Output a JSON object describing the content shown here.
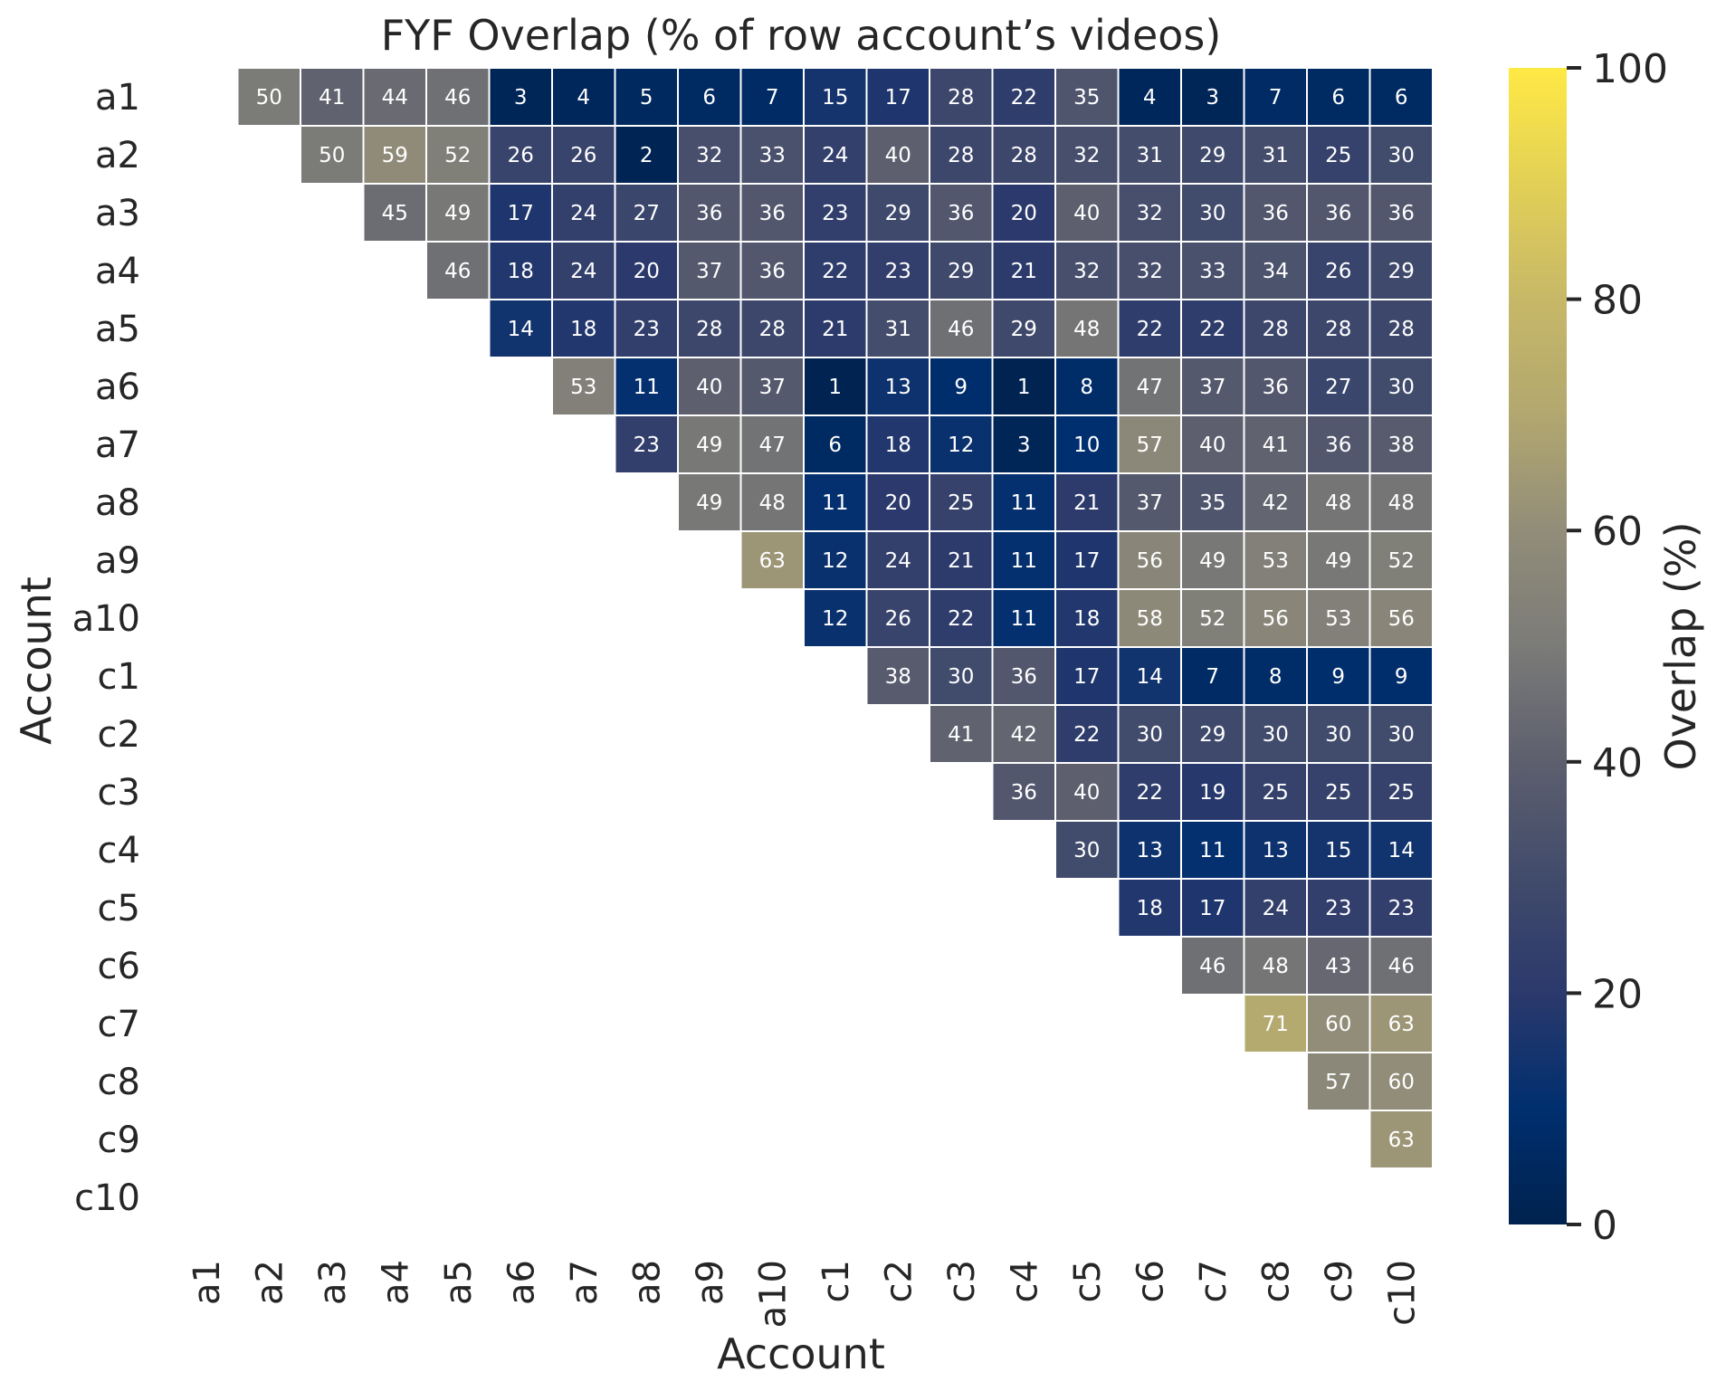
{
  "chart_data": {
    "type": "heatmap",
    "title": "FYF Overlap (% of row account’s videos)",
    "xlabel": "Account",
    "ylabel": "Account",
    "colorbar_label": "Overlap (%)",
    "colormap": "cividis",
    "vmin": 0,
    "vmax": 100,
    "colorbar_ticks": [
      0,
      20,
      40,
      60,
      80,
      100
    ],
    "rows": [
      "a1",
      "a2",
      "a3",
      "a4",
      "a5",
      "a6",
      "a7",
      "a8",
      "a9",
      "a10",
      "c1",
      "c2",
      "c3",
      "c4",
      "c5",
      "c6",
      "c7",
      "c8",
      "c9",
      "c10"
    ],
    "cols": [
      "a1",
      "a2",
      "a3",
      "a4",
      "a5",
      "a6",
      "a7",
      "a8",
      "a9",
      "a10",
      "c1",
      "c2",
      "c3",
      "c4",
      "c5",
      "c6",
      "c7",
      "c8",
      "c9",
      "c10"
    ],
    "mask": "upper triangle only; diagonal and lower triangle empty",
    "values": [
      [
        null,
        50,
        41,
        44,
        46,
        3,
        4,
        5,
        6,
        7,
        15,
        17,
        28,
        22,
        35,
        4,
        3,
        7,
        6,
        6
      ],
      [
        null,
        null,
        50,
        59,
        52,
        26,
        26,
        2,
        32,
        33,
        24,
        40,
        28,
        28,
        32,
        31,
        29,
        31,
        25,
        30
      ],
      [
        null,
        null,
        null,
        45,
        49,
        17,
        24,
        27,
        36,
        36,
        23,
        29,
        36,
        20,
        40,
        32,
        30,
        36,
        36,
        36
      ],
      [
        null,
        null,
        null,
        null,
        46,
        18,
        24,
        20,
        37,
        36,
        22,
        23,
        29,
        21,
        32,
        32,
        33,
        34,
        26,
        29
      ],
      [
        null,
        null,
        null,
        null,
        null,
        14,
        18,
        23,
        28,
        28,
        21,
        31,
        46,
        29,
        48,
        22,
        22,
        28,
        28,
        28
      ],
      [
        null,
        null,
        null,
        null,
        null,
        null,
        53,
        11,
        40,
        37,
        1,
        13,
        9,
        1,
        8,
        47,
        37,
        36,
        27,
        30
      ],
      [
        null,
        null,
        null,
        null,
        null,
        null,
        null,
        23,
        49,
        47,
        6,
        18,
        12,
        3,
        10,
        57,
        40,
        41,
        36,
        38
      ],
      [
        null,
        null,
        null,
        null,
        null,
        null,
        null,
        null,
        49,
        48,
        11,
        20,
        25,
        11,
        21,
        37,
        35,
        42,
        48,
        48
      ],
      [
        null,
        null,
        null,
        null,
        null,
        null,
        null,
        null,
        null,
        63,
        12,
        24,
        21,
        11,
        17,
        56,
        49,
        53,
        49,
        52
      ],
      [
        null,
        null,
        null,
        null,
        null,
        null,
        null,
        null,
        null,
        null,
        12,
        26,
        22,
        11,
        18,
        58,
        52,
        56,
        53,
        56
      ],
      [
        null,
        null,
        null,
        null,
        null,
        null,
        null,
        null,
        null,
        null,
        null,
        38,
        30,
        36,
        17,
        14,
        7,
        8,
        9,
        9
      ],
      [
        null,
        null,
        null,
        null,
        null,
        null,
        null,
        null,
        null,
        null,
        null,
        null,
        41,
        42,
        22,
        30,
        29,
        30,
        30,
        30
      ],
      [
        null,
        null,
        null,
        null,
        null,
        null,
        null,
        null,
        null,
        null,
        null,
        null,
        null,
        36,
        40,
        22,
        19,
        25,
        25,
        25
      ],
      [
        null,
        null,
        null,
        null,
        null,
        null,
        null,
        null,
        null,
        null,
        null,
        null,
        null,
        null,
        30,
        13,
        11,
        13,
        15,
        14
      ],
      [
        null,
        null,
        null,
        null,
        null,
        null,
        null,
        null,
        null,
        null,
        null,
        null,
        null,
        null,
        null,
        18,
        17,
        24,
        23,
        23
      ],
      [
        null,
        null,
        null,
        null,
        null,
        null,
        null,
        null,
        null,
        null,
        null,
        null,
        null,
        null,
        null,
        null,
        46,
        48,
        43,
        46
      ],
      [
        null,
        null,
        null,
        null,
        null,
        null,
        null,
        null,
        null,
        null,
        null,
        null,
        null,
        null,
        null,
        null,
        null,
        71,
        60,
        63
      ],
      [
        null,
        null,
        null,
        null,
        null,
        null,
        null,
        null,
        null,
        null,
        null,
        null,
        null,
        null,
        null,
        null,
        null,
        null,
        57,
        60
      ],
      [
        null,
        null,
        null,
        null,
        null,
        null,
        null,
        null,
        null,
        null,
        null,
        null,
        null,
        null,
        null,
        null,
        null,
        null,
        null,
        63
      ],
      [
        null,
        null,
        null,
        null,
        null,
        null,
        null,
        null,
        null,
        null,
        null,
        null,
        null,
        null,
        null,
        null,
        null,
        null,
        null,
        null
      ]
    ]
  }
}
